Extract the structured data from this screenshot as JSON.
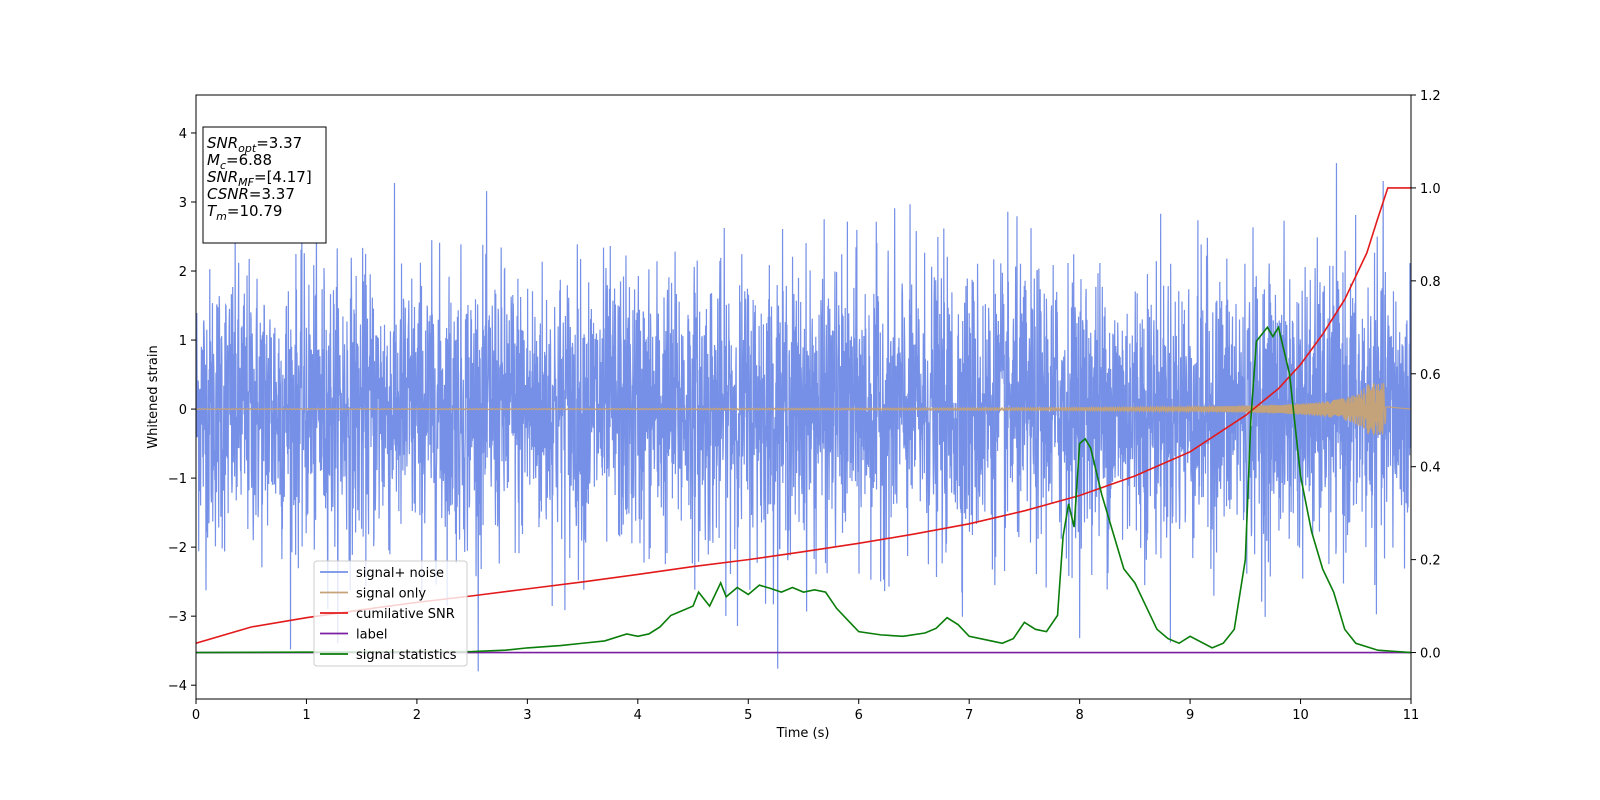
{
  "chart_data": {
    "type": "line",
    "xlabel": "Time (s)",
    "ylabel": "Whitened strain",
    "xlim": [
      0,
      11
    ],
    "ylim": [
      -4.2,
      4.55
    ],
    "y2lim": [
      -0.1,
      1.2
    ],
    "x_ticks": [
      0,
      1,
      2,
      3,
      4,
      5,
      6,
      7,
      8,
      9,
      10,
      11
    ],
    "y_ticks": [
      -4,
      -3,
      -2,
      -1,
      0,
      1,
      2,
      3,
      4
    ],
    "y_tick_labels": [
      "−4",
      "−3",
      "−2",
      "−1",
      "0",
      "1",
      "2",
      "3",
      "4"
    ],
    "y2_ticks": [
      0.0,
      0.2,
      0.4,
      0.6,
      0.8,
      1.0,
      1.2
    ],
    "y2_tick_labels": [
      "0.0",
      "0.2",
      "0.4",
      "0.6",
      "0.8",
      "1.0",
      "1.2"
    ],
    "legend": {
      "placement": "lower-left",
      "entries": [
        "signal+ noise",
        "signal only",
        "cumilative SNR",
        "label",
        "signal statistics"
      ]
    },
    "annotation": {
      "lines": [
        {
          "name": "SNR",
          "sub": "opt",
          "value": "=3.37"
        },
        {
          "name": "M",
          "sub": "c",
          "value": "=6.88"
        },
        {
          "name": "SNR",
          "sub": "MF",
          "value": "=[4.17]"
        },
        {
          "name": "CSNR",
          "sub": "",
          "value": "=3.37"
        },
        {
          "name": "T",
          "sub": "m",
          "value": "=10.79"
        }
      ]
    },
    "series": [
      {
        "name": "signal+ noise",
        "axis": "left",
        "color": "#7590e6",
        "style": "noise",
        "amplitude_sigma": 1.0,
        "x_range": [
          0,
          11
        ]
      },
      {
        "name": "signal only",
        "axis": "left",
        "color": "#c4a27a",
        "style": "chirp",
        "x_range": [
          0,
          10.79
        ],
        "max_amplitude": 0.38
      },
      {
        "name": "cumilative SNR",
        "axis": "right",
        "color": "#e31a1c",
        "x": [
          0,
          0.5,
          1,
          1.5,
          2,
          2.5,
          3,
          3.5,
          4,
          4.5,
          5,
          5.5,
          6,
          6.5,
          7,
          7.5,
          8,
          8.5,
          9,
          9.5,
          9.8,
          10,
          10.2,
          10.4,
          10.6,
          10.7,
          10.79,
          11
        ],
        "values": [
          0.02,
          0.055,
          0.075,
          0.092,
          0.108,
          0.122,
          0.137,
          0.152,
          0.168,
          0.185,
          0.2,
          0.217,
          0.235,
          0.255,
          0.277,
          0.305,
          0.338,
          0.38,
          0.432,
          0.51,
          0.568,
          0.62,
          0.685,
          0.76,
          0.86,
          0.935,
          1.0,
          1.0
        ]
      },
      {
        "name": "label",
        "axis": "right",
        "color": "#7b1fa2",
        "x": [
          0,
          11
        ],
        "values": [
          0,
          0
        ]
      },
      {
        "name": "signal statistics",
        "axis": "right",
        "color": "#0a7d0a",
        "x": [
          0,
          2.5,
          2.8,
          3.0,
          3.3,
          3.5,
          3.7,
          3.9,
          4.0,
          4.1,
          4.2,
          4.3,
          4.4,
          4.5,
          4.55,
          4.65,
          4.75,
          4.8,
          4.9,
          5.0,
          5.1,
          5.2,
          5.3,
          5.4,
          5.5,
          5.6,
          5.7,
          5.8,
          5.9,
          6.0,
          6.2,
          6.4,
          6.6,
          6.7,
          6.8,
          6.9,
          7.0,
          7.2,
          7.3,
          7.4,
          7.5,
          7.6,
          7.7,
          7.8,
          7.85,
          7.9,
          7.95,
          8.0,
          8.05,
          8.1,
          8.2,
          8.3,
          8.4,
          8.5,
          8.6,
          8.7,
          8.8,
          8.9,
          9.0,
          9.2,
          9.3,
          9.4,
          9.5,
          9.55,
          9.6,
          9.7,
          9.75,
          9.8,
          9.9,
          10.0,
          10.1,
          10.2,
          10.3,
          10.4,
          10.5,
          10.7,
          11.0
        ],
        "values": [
          0.0,
          0.002,
          0.005,
          0.01,
          0.015,
          0.02,
          0.025,
          0.04,
          0.035,
          0.04,
          0.055,
          0.08,
          0.09,
          0.1,
          0.13,
          0.1,
          0.15,
          0.12,
          0.14,
          0.125,
          0.145,
          0.138,
          0.13,
          0.14,
          0.13,
          0.135,
          0.13,
          0.095,
          0.07,
          0.045,
          0.038,
          0.035,
          0.042,
          0.052,
          0.075,
          0.06,
          0.035,
          0.025,
          0.02,
          0.03,
          0.065,
          0.05,
          0.045,
          0.08,
          0.25,
          0.32,
          0.27,
          0.45,
          0.46,
          0.44,
          0.34,
          0.26,
          0.18,
          0.15,
          0.1,
          0.05,
          0.03,
          0.02,
          0.035,
          0.01,
          0.02,
          0.05,
          0.2,
          0.5,
          0.67,
          0.7,
          0.68,
          0.7,
          0.6,
          0.38,
          0.26,
          0.18,
          0.13,
          0.05,
          0.02,
          0.005,
          0.0
        ]
      }
    ]
  }
}
